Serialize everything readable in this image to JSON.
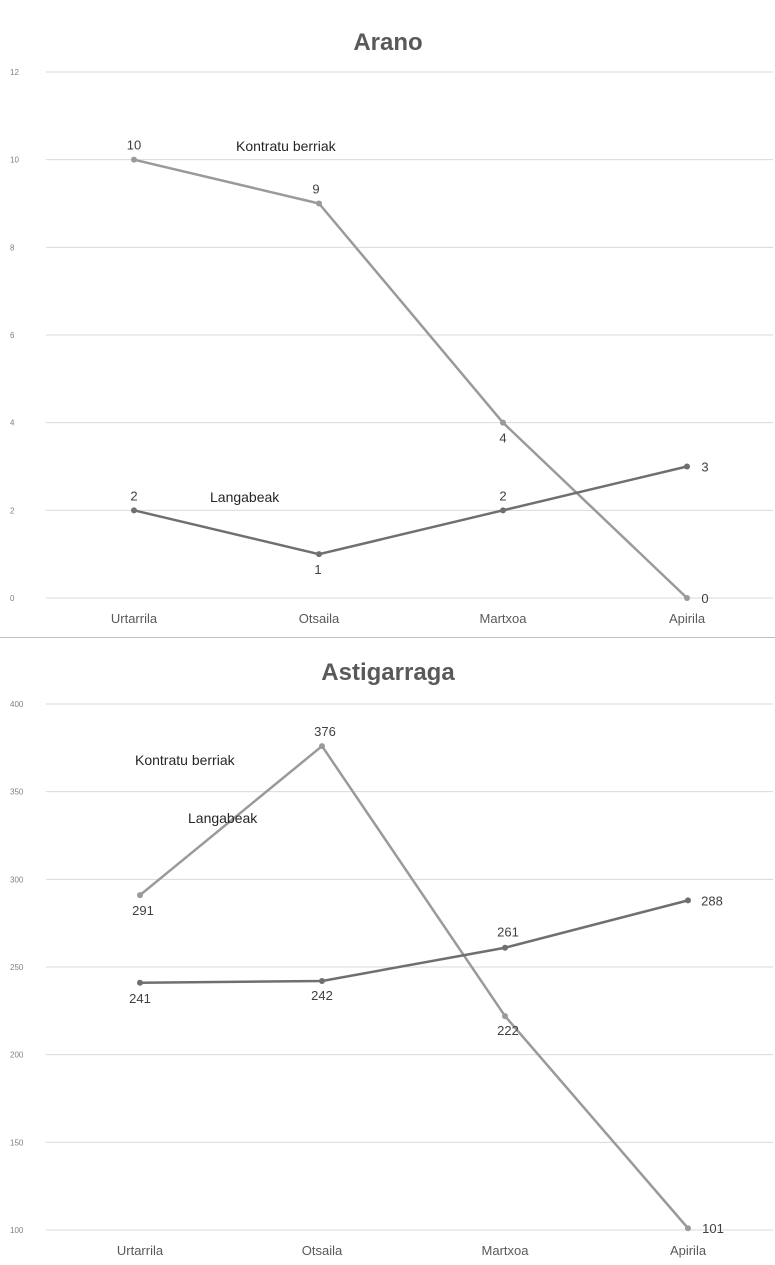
{
  "colors": {
    "kontratu": "#9a9a9a",
    "langabeak": "#6f6f6f",
    "grid": "#d9d9d9",
    "divider": "#bfbfbf"
  },
  "chart_data": [
    {
      "type": "line",
      "title": "Arano",
      "categories": [
        "Urtarrila",
        "Otsaila",
        "Martxoa",
        "Apirila"
      ],
      "ylim": [
        0,
        12
      ],
      "yticks": [
        0,
        2,
        4,
        6,
        8,
        10,
        12
      ],
      "grid": true,
      "legend": "none",
      "series": [
        {
          "name": "Kontratu berriak",
          "values": [
            10,
            9,
            4,
            0
          ]
        },
        {
          "name": "Langabeak",
          "values": [
            2,
            1,
            2,
            3
          ]
        }
      ]
    },
    {
      "type": "line",
      "title": "Astigarraga",
      "categories": [
        "Urtarrila",
        "Otsaila",
        "Martxoa",
        "Apirila"
      ],
      "ylim": [
        100,
        400
      ],
      "yticks": [
        100,
        150,
        200,
        250,
        300,
        350,
        400
      ],
      "grid": true,
      "legend": "none",
      "series": [
        {
          "name": "Kontratu berriak",
          "values": [
            291,
            376,
            222,
            101
          ]
        },
        {
          "name": "Langabeak",
          "values": [
            241,
            242,
            261,
            288
          ]
        }
      ]
    }
  ]
}
